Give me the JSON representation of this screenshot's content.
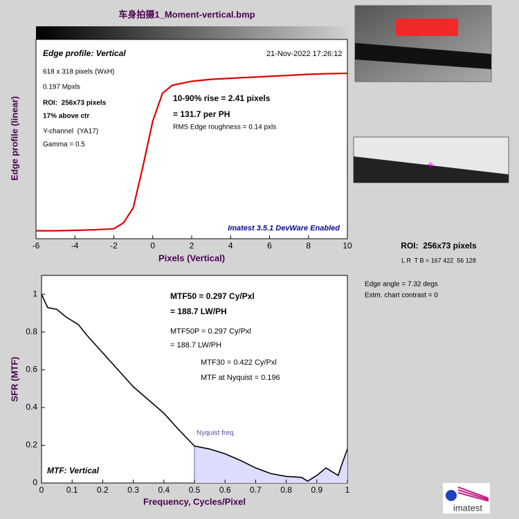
{
  "title": "车身拍摄1_Moment-vertical.bmp",
  "chart_data": [
    {
      "type": "line",
      "xlabel": "Pixels (Vertical)",
      "ylabel": "Edge profile (linear)",
      "xlim": [
        -6,
        10
      ],
      "xticks": [
        -6,
        -4,
        -2,
        0,
        2,
        4,
        6,
        8,
        10
      ],
      "ylim": [
        0,
        1
      ],
      "x": [
        -6,
        -5,
        -4,
        -3,
        -2,
        -1.5,
        -1,
        -0.5,
        0,
        0.5,
        1,
        1.5,
        2,
        3,
        4,
        5,
        6,
        7,
        8,
        9,
        10
      ],
      "series": [
        {
          "color": "#e00000",
          "values": [
            0.04,
            0.04,
            0.042,
            0.045,
            0.05,
            0.08,
            0.156,
            0.365,
            0.59,
            0.73,
            0.77,
            0.78,
            0.79,
            0.8,
            0.805,
            0.81,
            0.815,
            0.82,
            0.825,
            0.828,
            0.83
          ]
        }
      ],
      "annotations": [
        "Edge profile: Vertical",
        "21-Nov-2022 17:26:12",
        "618 x 318 pixels (WxH)",
        "0.197 Mpxls",
        "ROI:  256x73 pixels",
        "17% above ctr",
        "Y-channel  (YA17)",
        "Gamma = 0.5",
        "10-90% rise = 2.41 pixels",
        "= 131.7 per PH",
        "RMS Edge roughness = 0.14 pxls",
        "Imatest 3.5.1 DevWare Enabled"
      ]
    },
    {
      "type": "line",
      "xlabel": "Frequency, Cycles/Pixel",
      "ylabel": "SFR (MTF)",
      "xlim": [
        0,
        1
      ],
      "xticks": [
        0,
        0.1,
        0.2,
        0.3,
        0.4,
        0.5,
        0.6,
        0.7,
        0.8,
        0.9,
        1
      ],
      "ylim": [
        0,
        1.1
      ],
      "yticks": [
        0,
        0.2,
        0.4,
        0.6,
        0.8,
        1
      ],
      "nyquist": 0.5,
      "x": [
        0,
        0.02,
        0.05,
        0.08,
        0.1,
        0.12,
        0.15,
        0.2,
        0.25,
        0.3,
        0.35,
        0.4,
        0.45,
        0.5,
        0.55,
        0.6,
        0.65,
        0.7,
        0.75,
        0.8,
        0.85,
        0.87,
        0.9,
        0.93,
        0.95,
        0.97,
        0.98,
        1
      ],
      "series": [
        {
          "color": "#000000",
          "values": [
            1,
            0.93,
            0.92,
            0.88,
            0.86,
            0.84,
            0.78,
            0.69,
            0.6,
            0.51,
            0.44,
            0.37,
            0.28,
            0.196,
            0.18,
            0.155,
            0.12,
            0.08,
            0.05,
            0.035,
            0.03,
            0.01,
            0.04,
            0.08,
            0.06,
            0.04,
            0.09,
            0.18
          ]
        }
      ],
      "annotations": [
        "MTF50 = 0.297 Cy/Pxl",
        "= 188.7 LW/PH",
        "MTF50P = 0.297 Cy/Pxl",
        "= 188.7 LW/PH",
        "MTF30 = 0.422 Cy/Pxl",
        "MTF at Nyquist = 0.196",
        "Nyquist freq.",
        "MTF: Vertical"
      ]
    }
  ],
  "side": {
    "roi": "ROI:  256x73 pixels",
    "lrtb": "L R  T B = 167 422  56 128",
    "angle": "Edge angle = 7.32 degs",
    "contrast": "Estm. chart contrast = 0",
    "logo": "imatest"
  }
}
